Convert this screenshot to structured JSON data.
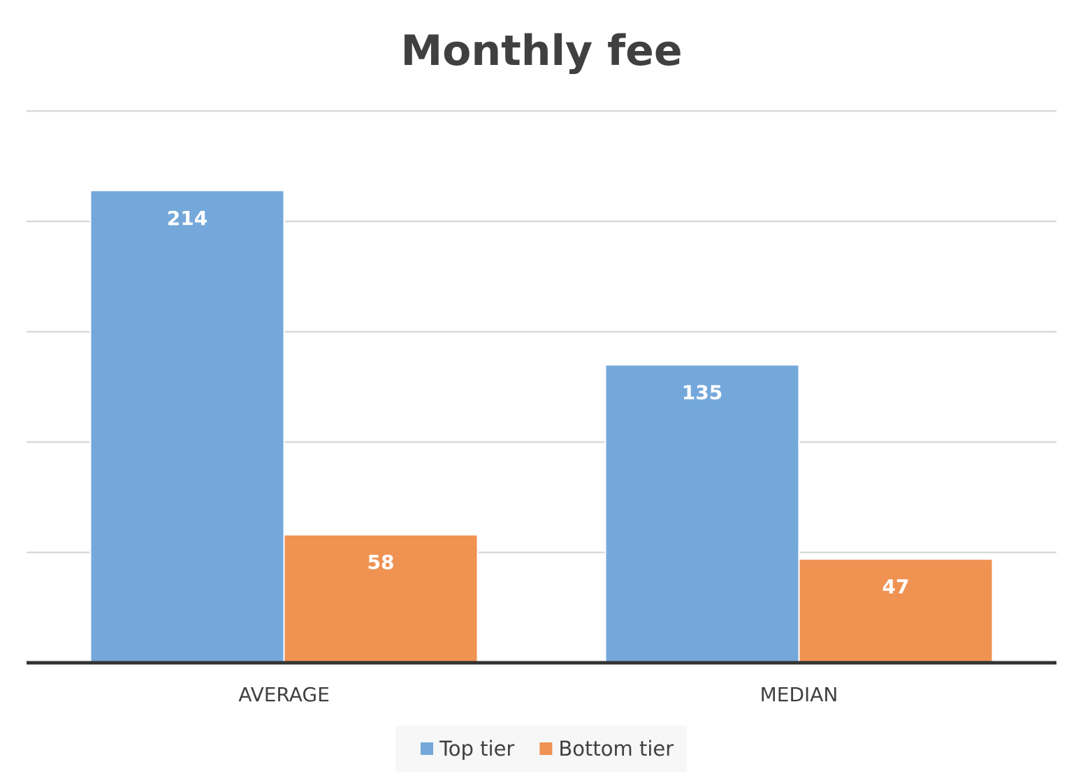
{
  "chart_data": {
    "type": "bar",
    "title": "Monthly fee",
    "categories": [
      "AVERAGE",
      "MEDIAN"
    ],
    "series": [
      {
        "name": "Top tier",
        "values": [
          214,
          135
        ],
        "color": "#75A8DA"
      },
      {
        "name": "Bottom tier",
        "values": [
          58,
          47
        ],
        "color": "#EF9252"
      }
    ],
    "ylim": [
      0,
      250
    ],
    "grid": true,
    "legend": "bottom"
  }
}
